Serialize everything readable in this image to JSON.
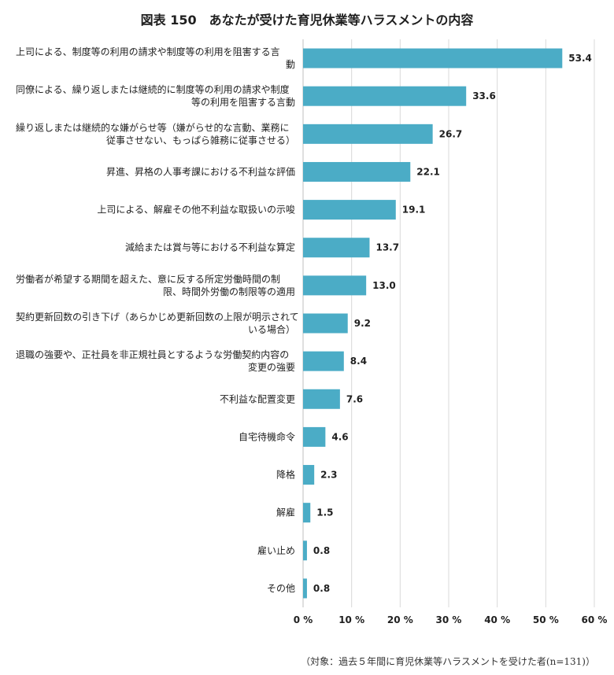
{
  "title": "図表 150　あなたが受けた育児休業等ハラスメントの内容",
  "note": "（対象：過去５年間に育児休業等ハラスメントを受けた者(n=131)）",
  "colors": {
    "bar": "#4bacc6",
    "grid": "#d9d9d9",
    "axis": "#bfbfbf"
  },
  "chart_data": {
    "type": "bar",
    "orientation": "horizontal",
    "categories": [
      [
        "上司による、制度等の利用の請求や制度等の利用を阻害する言",
        "動"
      ],
      [
        "同僚による、繰り返しまたは継続的に制度等の利用の請求や制度",
        "等の利用を阻害する言動"
      ],
      [
        "繰り返しまたは継続的な嫌がらせ等（嫌がらせ的な言動、業務に",
        "従事させない、もっぱら雑務に従事させる）"
      ],
      [
        "昇進、昇格の人事考課における不利益な評価"
      ],
      [
        "上司による、解雇その他不利益な取扱いの示唆"
      ],
      [
        "減給または賞与等における不利益な算定"
      ],
      [
        "労働者が希望する期間を超えた、意に反する所定労働時間の制",
        "限、時間外労働の制限等の適用"
      ],
      [
        "契約更新回数の引き下げ（あらかじめ更新回数の上限が明示されて",
        "いる場合）"
      ],
      [
        "退職の強要や、正社員を非正規社員とするような労働契約内容の",
        "変更の強要"
      ],
      [
        "不利益な配置変更"
      ],
      [
        "自宅待機命令"
      ],
      [
        "降格"
      ],
      [
        "解雇"
      ],
      [
        "雇い止め"
      ],
      [
        "その他"
      ]
    ],
    "values": [
      53.4,
      33.6,
      26.7,
      22.1,
      19.1,
      13.7,
      13.0,
      9.2,
      8.4,
      7.6,
      4.6,
      2.3,
      1.5,
      0.8,
      0.8
    ],
    "value_labels": [
      "53.4",
      "33.6",
      "26.7",
      "22.1",
      "19.1",
      "13.7",
      "13.0",
      "9.2",
      "8.4",
      "7.6",
      "4.6",
      "2.3",
      "1.5",
      "0.8",
      "0.8"
    ],
    "xlim": [
      0,
      60
    ],
    "xticks": [
      0,
      10,
      20,
      30,
      40,
      50,
      60
    ],
    "xtick_labels": [
      "0 %",
      "10 %",
      "20 %",
      "30 %",
      "40 %",
      "50 %",
      "60 %"
    ],
    "grid": true,
    "legend": "none"
  }
}
